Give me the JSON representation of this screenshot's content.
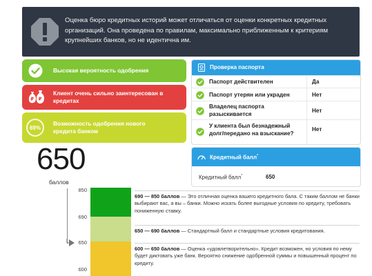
{
  "top_id": "4485702",
  "banner": {
    "icon": "exclamation-octagon-icon",
    "text": "Оценка бюро кредитных историй может отличаться от оценки конкретных кредитных организаций. Она проведена по правилам, максимально приближенным к критериям крупнейших банков, но не идентична им."
  },
  "status_cards": [
    {
      "icon": "check-circle-icon",
      "text": "Высокая вероятность одобрения",
      "color": "#7fc534"
    },
    {
      "icon": "money-bags-icon",
      "text": "Клиент очень сильно заинтересован в кредитах",
      "color": "#e3413f"
    },
    {
      "badge": "69%",
      "text": "Возможность одобрения нового кредита банком",
      "color": "#c6d82f"
    }
  ],
  "passport": {
    "title": "Проверка паспорта",
    "rows": [
      {
        "question": "Паспорт действителен",
        "answer": "Да"
      },
      {
        "question": "Паспорт утерян или украден",
        "answer": "Нет"
      },
      {
        "question": "Владелец паспорта разыскивается",
        "answer": "Нет"
      },
      {
        "question": "У клиента был безнадежный долг/передано на взыскание?",
        "answer": "Нет"
      }
    ]
  },
  "score_panel": {
    "title": "Кредитный балл",
    "row_label": "Кредитный балл",
    "row_value": "650"
  },
  "score": {
    "value": "650",
    "unit": "баллов"
  },
  "scale": {
    "ticks": [
      "850",
      "690",
      "650",
      "600"
    ],
    "pointer_value": "650",
    "colors": {
      "high": "#10a31a",
      "standard": "#c9dd8c",
      "satisfactory": "#f1c52c"
    }
  },
  "descriptions": [
    {
      "range": "690 — 850 баллов",
      "text": " — Это отличная оценка вашего кредитного бала. С таким баллом не банки выбирают вас, а вы – банки. Можно искать более выгодные условия по кредиту, требовать пониженную ставку."
    },
    {
      "range": "650 — 690 баллов",
      "text": " — Стандартный балл и стандартные условия кредитования."
    },
    {
      "range": "600 — 650 баллов",
      "text": " — Оценка «удовлетворительно». Кредит возможен, но условия по нему будет диктовать уже банк. Вероятно снижение одобренной суммы и повышенный процент по кредиту."
    }
  ]
}
